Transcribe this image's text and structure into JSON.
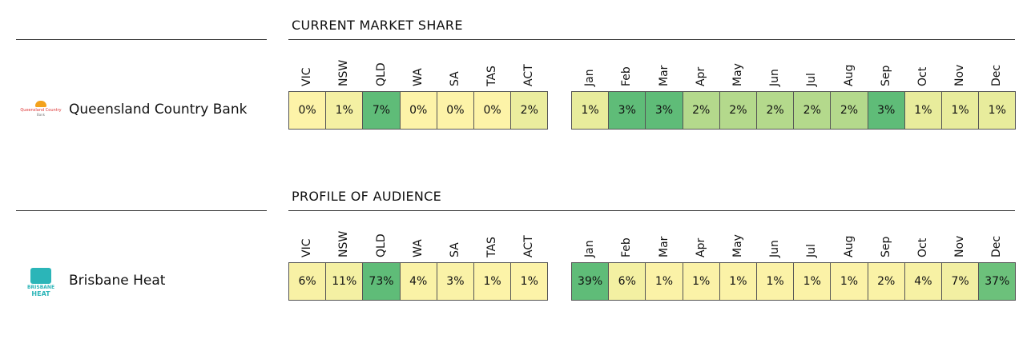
{
  "sections": [
    {
      "title": "CURRENT MARKET SHARE",
      "brand": {
        "name": "Queensland Country Bank",
        "logo_lines": [
          "Queensland Country",
          "Bank"
        ]
      },
      "states": {
        "headers": [
          "VIC",
          "NSW",
          "QLD",
          "WA",
          "SA",
          "TAS",
          "ACT"
        ],
        "cells": [
          "0%",
          "1%",
          "7%",
          "0%",
          "0%",
          "0%",
          "2%"
        ]
      },
      "months": {
        "headers": [
          "Jan",
          "Feb",
          "Mar",
          "Apr",
          "May",
          "Jun",
          "Jul",
          "Aug",
          "Sep",
          "Oct",
          "Nov",
          "Dec"
        ],
        "cells": [
          "1%",
          "3%",
          "3%",
          "2%",
          "2%",
          "2%",
          "2%",
          "2%",
          "3%",
          "1%",
          "1%",
          "1%"
        ]
      }
    },
    {
      "title": "PROFILE OF AUDIENCE",
      "brand": {
        "name": "Brisbane Heat",
        "logo_lines": [
          "BRISBANE",
          "HEAT"
        ]
      },
      "states": {
        "headers": [
          "VIC",
          "NSW",
          "QLD",
          "WA",
          "SA",
          "TAS",
          "ACT"
        ],
        "cells": [
          "6%",
          "11%",
          "73%",
          "4%",
          "3%",
          "1%",
          "1%"
        ]
      },
      "months": {
        "headers": [
          "Jan",
          "Feb",
          "Mar",
          "Apr",
          "May",
          "Jun",
          "Jul",
          "Aug",
          "Sep",
          "Oct",
          "Nov",
          "Dec"
        ],
        "cells": [
          "39%",
          "6%",
          "1%",
          "1%",
          "1%",
          "1%",
          "1%",
          "1%",
          "2%",
          "4%",
          "7%",
          "37%"
        ]
      }
    }
  ]
}
